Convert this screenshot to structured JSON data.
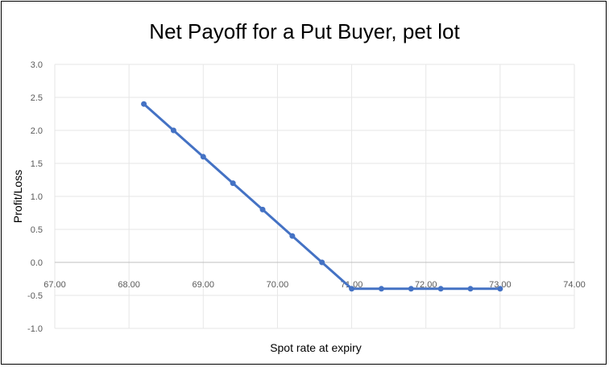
{
  "chart_data": {
    "type": "line",
    "title": "Net Payoff for a Put Buyer, pet lot",
    "xlabel": "Spot rate at expiry",
    "ylabel": "Profit/Loss",
    "xlim": [
      67,
      74
    ],
    "ylim": [
      -1,
      3
    ],
    "x_ticks": [
      "67.00",
      "68.00",
      "69.00",
      "70.00",
      "71.00",
      "72.00",
      "73.00",
      "74.00"
    ],
    "y_ticks": [
      "-1.0",
      "-0.5",
      "0.0",
      "0.5",
      "1.0",
      "1.5",
      "2.0",
      "2.5",
      "3.0"
    ],
    "grid": true,
    "legend": "none",
    "color": "#4472c4",
    "series": [
      {
        "x": [
          68.2,
          68.6,
          69.0,
          69.4,
          69.8,
          70.2,
          70.6,
          71.0,
          71.4,
          71.8,
          72.2,
          72.6,
          73.0
        ],
        "values": [
          2.4,
          2.0,
          1.6,
          1.2,
          0.8,
          0.4,
          0.0,
          -0.4,
          -0.4,
          -0.4,
          -0.4,
          -0.4,
          -0.4
        ]
      }
    ]
  }
}
